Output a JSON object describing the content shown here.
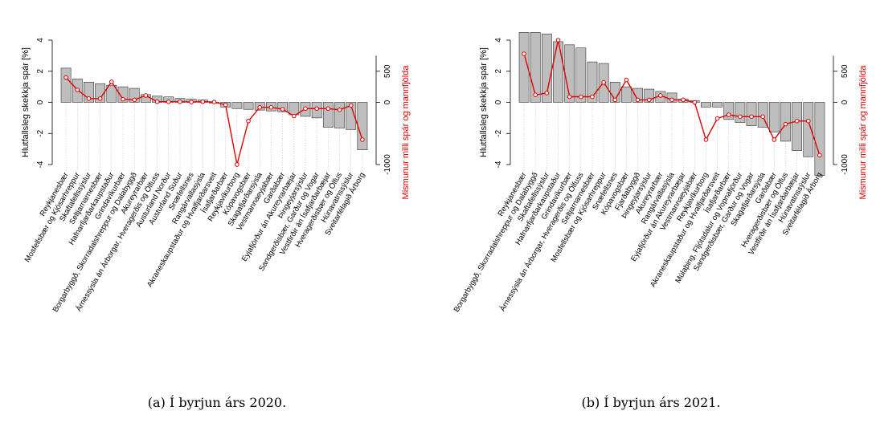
{
  "colors": {
    "bar_fill": "#bebebe",
    "bar_stroke": "#333333",
    "line": "#e00000",
    "axis": "#000000",
    "grid": "#aaaaaa"
  },
  "captions": [
    "(a) Í byrjun árs 2020.",
    "(b) Í byrjun árs 2021."
  ],
  "chart_data": [
    {
      "type": "bar",
      "title": "",
      "ylabel": "Hlutfallsleg skekkja spár [%]",
      "y2label": "Mismunur milli spár og mannfjölda",
      "ylim": [
        -4,
        4
      ],
      "y2lim": [
        -1000,
        1000
      ],
      "yticks": [
        "-4",
        "-2",
        "0",
        "2",
        "4"
      ],
      "y2ticks": [
        "-1000",
        "0",
        "500"
      ],
      "categories": [
        "Reykjanesbær",
        "Mosfellsbær og Kjósarhreppur",
        "Skaftafellssýslur",
        "Seltjarnarnesbær",
        "Hafnarfjarðarkaupstaður",
        "Grindavíkurbær",
        "Borgarbyggð, Skorradalshreppur og Dalabyggð",
        "Akureyrarbær",
        "Árnessýsla án Árborgar, Hveragerðis og Ölfuss",
        "Austurland Norður",
        "Austurland Suður",
        "Snæfellsnes",
        "Rangárvallasýsla",
        "Akraneskaupstaður og Hvalfjarðarsveit",
        "Ísafjarðarbær",
        "Reykjavíkurborg",
        "Kópavogsbær",
        "Skagafjarðarsýsla",
        "Vestmannaeyjabær",
        "Garðabær",
        "Eyjafjörður án Akureyrarbæjar",
        "Þingeyjarsýslur",
        "Sandgerðisbær, Garður og Vogar",
        "Vestfirðir án Ísafjarðarbæjar",
        "Hveragerðisbær og Ölfus",
        "Húnavatnssýslur",
        "Sveitarfélagið Árborg"
      ],
      "series": [
        {
          "name": "",
          "axis": "left",
          "kind": "bar",
          "values": [
            2.2,
            1.5,
            1.3,
            1.2,
            1.1,
            1.0,
            0.9,
            0.5,
            0.4,
            0.35,
            0.25,
            0.2,
            0.15,
            -0.05,
            -0.3,
            -0.4,
            -0.45,
            -0.5,
            -0.55,
            -0.6,
            -0.8,
            -0.9,
            -1.0,
            -1.6,
            -1.65,
            -1.75,
            -3.05
          ]
        },
        {
          "name": "",
          "axis": "right",
          "kind": "line",
          "values": [
            400,
            200,
            60,
            60,
            330,
            50,
            40,
            110,
            10,
            10,
            10,
            5,
            10,
            5,
            -40,
            -1000,
            -300,
            -80,
            -80,
            -110,
            -220,
            -100,
            -100,
            -100,
            -120,
            -50,
            -600
          ]
        }
      ]
    },
    {
      "type": "bar",
      "title": "",
      "ylabel": "Hlutfallsleg skekkja spár [%]",
      "y2label": "Mismunur milli spár og mannfjölda",
      "ylim": [
        -4,
        4
      ],
      "y2lim": [
        -1000,
        1000
      ],
      "yticks": [
        "-4",
        "-2",
        "0",
        "2",
        "4"
      ],
      "y2ticks": [
        "-1000",
        "0",
        "500"
      ],
      "categories": [
        "Reykjanesbær",
        "Borgarbyggð, Skorradalshreppur og Dalabyggð",
        "Skaftafellssýslur",
        "Hafnarfjarðarkaupstaður",
        "Grindavíkurbær",
        "Árnessýsla án Árborgar, Hveragerðis og Ölfuss",
        "Seltjarnarnesbær",
        "Mosfellsbær og Kjósarhreppur",
        "Snæfellsnes",
        "Kópavogsbær",
        "Fjarðabyggð",
        "Þingeyjarsýslur",
        "Akureyrarbær",
        "Rangárvallasýsla",
        "Eyjafjörður án Akureyrarbæjar",
        "Vestmannaeyjabær",
        "Reykjavíkurborg",
        "Akraneskaupstaður og Hvalfjarðarsveit",
        "Ísafjarðarbær",
        "Múlaþing, Fljótsdalur og Vopnafjörður",
        "Sandgerðisbær, Garður og Vogar",
        "Skagafjarðarsýsla",
        "Garðabær",
        "Hveragerðisbær og Ölfus",
        "Vestfirðir án Ísafjarðarbæjar",
        "Húnavatnssýslur",
        "Sveitarfélagið Árborg"
      ],
      "series": [
        {
          "name": "",
          "axis": "left",
          "kind": "bar",
          "values": [
            4.5,
            4.5,
            4.4,
            3.9,
            3.7,
            3.5,
            2.6,
            2.5,
            1.3,
            1.0,
            0.9,
            0.85,
            0.7,
            0.6,
            0.2,
            0.1,
            -0.3,
            -0.3,
            -1.1,
            -1.3,
            -1.5,
            -1.6,
            -1.9,
            -2.5,
            -3.1,
            -3.5,
            -4.7
          ]
        },
        {
          "name": "",
          "axis": "right",
          "kind": "line",
          "values": [
            780,
            120,
            150,
            1000,
            90,
            90,
            90,
            320,
            40,
            360,
            40,
            40,
            110,
            40,
            40,
            0,
            -600,
            -260,
            -200,
            -230,
            -230,
            -230,
            -600,
            -350,
            -300,
            -300,
            -850
          ]
        }
      ]
    }
  ]
}
